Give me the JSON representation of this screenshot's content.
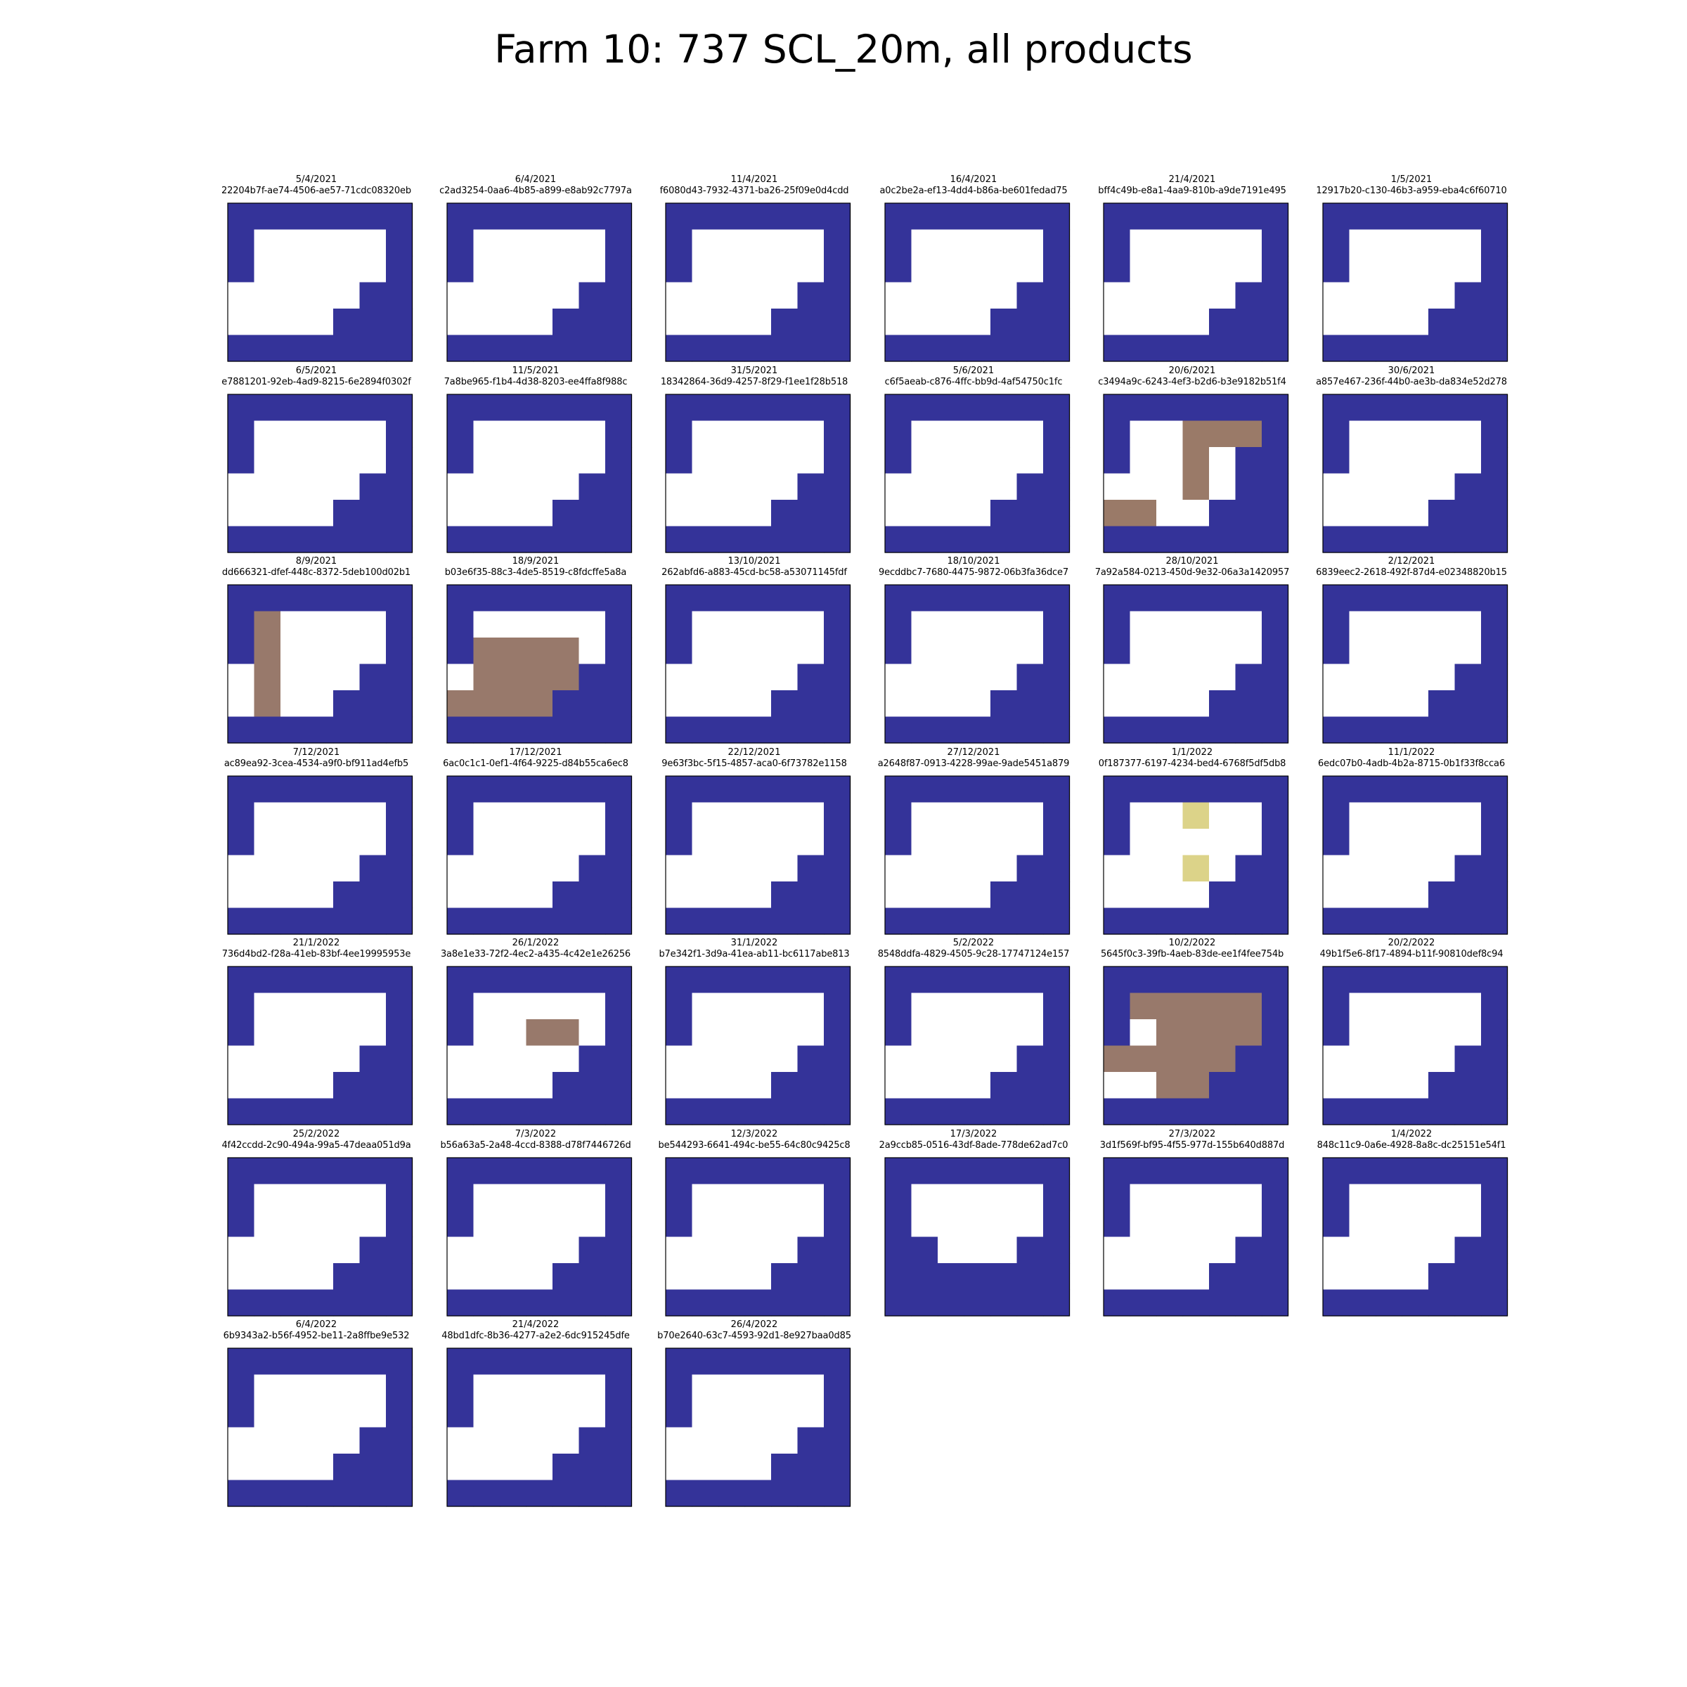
{
  "title": "Farm 10: 737 SCL_20m, all products",
  "chart_data": {
    "type": "heatmap",
    "title": "Farm 10: 737 SCL_20m, all products",
    "grid_columns": 6,
    "colors": {
      "N": "#343399",
      "W": "#ffffff",
      "B": "#98796b",
      "Y": "#dcd389",
      "D": "#9a7a68"
    },
    "panels": [
      {
        "date": "5/4/2021",
        "id": "22204b7f-ae74-4506-ae57-71cdc08320eb",
        "cells": [
          "NNNNNNN",
          "NWWWWWN",
          "NWWWWWN",
          "WWWWWNN",
          "WWWWNNN",
          "NNNNNNN"
        ]
      },
      {
        "date": "6/4/2021",
        "id": "c2ad3254-0aa6-4b85-a899-e8ab92c7797a",
        "cells": [
          "NNNNNNN",
          "NWWWWWN",
          "NWWWWWN",
          "WWWWWNN",
          "WWWWNNN",
          "NNNNNNN"
        ]
      },
      {
        "date": "11/4/2021",
        "id": "f6080d43-7932-4371-ba26-25f09e0d4cdd",
        "cells": [
          "NNNNNNN",
          "NWWWWWN",
          "NWWWWWN",
          "WWWWWNN",
          "WWWWNNN",
          "NNNNNNN"
        ]
      },
      {
        "date": "16/4/2021",
        "id": "a0c2be2a-ef13-4dd4-b86a-be601fedad75",
        "cells": [
          "NNNNNNN",
          "NWWWWWN",
          "NWWWWWN",
          "WWWWWNN",
          "WWWWNNN",
          "NNNNNNN"
        ]
      },
      {
        "date": "21/4/2021",
        "id": "bff4c49b-e8a1-4aa9-810b-a9de7191e495",
        "cells": [
          "NNNNNNN",
          "NWWWWWN",
          "NWWWWWN",
          "WWWWWNN",
          "WWWWNNN",
          "NNNNNNN"
        ]
      },
      {
        "date": "1/5/2021",
        "id": "12917b20-c130-46b3-a959-eba4c6f60710",
        "cells": [
          "NNNNNNN",
          "NWWWWWN",
          "NWWWWWN",
          "WWWWWNN",
          "WWWWNNN",
          "NNNNNNN"
        ]
      },
      {
        "date": "6/5/2021",
        "id": "e7881201-92eb-4ad9-8215-6e2894f0302f",
        "cells": [
          "NNNNNNN",
          "NWWWWWN",
          "NWWWWWN",
          "WWWWWNN",
          "WWWWNNN",
          "NNNNNNN"
        ]
      },
      {
        "date": "11/5/2021",
        "id": "7a8be965-f1b4-4d38-8203-ee4ffa8f988c",
        "cells": [
          "NNNNNNN",
          "NWWWWWN",
          "NWWWWWN",
          "WWWWWNN",
          "WWWWNNN",
          "NNNNNNN"
        ]
      },
      {
        "date": "31/5/2021",
        "id": "18342864-36d9-4257-8f29-f1ee1f28b518",
        "cells": [
          "NNNNNNN",
          "NWWWWWN",
          "NWWWWWN",
          "WWWWWNN",
          "WWWWNNN",
          "NNNNNNN"
        ]
      },
      {
        "date": "5/6/2021",
        "id": "c6f5aeab-c876-4ffc-bb9d-4af54750c1fc",
        "cells": [
          "NNNNNNN",
          "NWWWWWN",
          "NWWWWWN",
          "WWWWWNN",
          "WWWWNNN",
          "NNNNNNN"
        ]
      },
      {
        "date": "20/6/2021",
        "id": "c3494a9c-6243-4ef3-b2d6-b3e9182b51f4",
        "cells": [
          "NNNNNNN",
          "NWWDDDN",
          "NWWDWNN",
          "WWWDWNN",
          "DDWWNNN",
          "NNNNNNN"
        ]
      },
      {
        "date": "30/6/2021",
        "id": "a857e467-236f-44b0-ae3b-da834e52d278",
        "cells": [
          "NNNNNNN",
          "NWWWWWN",
          "NWWWWWN",
          "WWWWWNN",
          "WWWWNNN",
          "NNNNNNN"
        ]
      },
      {
        "date": "8/9/2021",
        "id": "dd666321-dfef-448c-8372-5deb100d02b1",
        "cells": [
          "NNNNNNN",
          "NBWWWWN",
          "NBWWWWN",
          "WBWWWNN",
          "WBWWNNN",
          "NNNNNNN"
        ]
      },
      {
        "date": "18/9/2021",
        "id": "b03e6f35-88c3-4de5-8519-c8fdcffe5a8a",
        "cells": [
          "NNNNNNN",
          "NWWWWWN",
          "NBBBBWN",
          "WBBBBNN",
          "BBBBNNN",
          "NNNNNNN"
        ]
      },
      {
        "date": "13/10/2021",
        "id": "262abfd6-a883-45cd-bc58-a53071145fdf",
        "cells": [
          "NNNNNNN",
          "NWWWWWN",
          "NWWWWWN",
          "WWWWWNN",
          "WWWWNNN",
          "NNNNNNN"
        ]
      },
      {
        "date": "18/10/2021",
        "id": "9ecddbc7-7680-4475-9872-06b3fa36dce7",
        "cells": [
          "NNNNNNN",
          "NWWWWWN",
          "NWWWWWN",
          "WWWWWNN",
          "WWWWNNN",
          "NNNNNNN"
        ]
      },
      {
        "date": "28/10/2021",
        "id": "7a92a584-0213-450d-9e32-06a3a1420957",
        "cells": [
          "NNNNNNN",
          "NWWWWWN",
          "NWWWWWN",
          "WWWWWNN",
          "WWWWNNN",
          "NNNNNNN"
        ]
      },
      {
        "date": "2/12/2021",
        "id": "6839eec2-2618-492f-87d4-e02348820b15",
        "cells": [
          "NNNNNNN",
          "NWWWWWN",
          "NWWWWWN",
          "WWWWWNN",
          "WWWWNNN",
          "NNNNNNN"
        ]
      },
      {
        "date": "7/12/2021",
        "id": "ac89ea92-3cea-4534-a9f0-bf911ad4efb5",
        "cells": [
          "NNNNNNN",
          "NWWWWWN",
          "NWWWWWN",
          "WWWWWNN",
          "WWWWNNN",
          "NNNNNNN"
        ]
      },
      {
        "date": "17/12/2021",
        "id": "6ac0c1c1-0ef1-4f64-9225-d84b55ca6ec8",
        "cells": [
          "NNNNNNN",
          "NWWWWWN",
          "NWWWWWN",
          "WWWWWNN",
          "WWWWNNN",
          "NNNNNNN"
        ]
      },
      {
        "date": "22/12/2021",
        "id": "9e63f3bc-5f15-4857-aca0-6f73782e1158",
        "cells": [
          "NNNNNNN",
          "NWWWWWN",
          "NWWWWWN",
          "WWWWWNN",
          "WWWWNNN",
          "NNNNNNN"
        ]
      },
      {
        "date": "27/12/2021",
        "id": "a2648f87-0913-4228-99ae-9ade5451a879",
        "cells": [
          "NNNNNNN",
          "NWWWWWN",
          "NWWWWWN",
          "WWWWWNN",
          "WWWWNNN",
          "NNNNNNN"
        ]
      },
      {
        "date": "1/1/2022",
        "id": "0f187377-6197-4234-bed4-6768f5df5db8",
        "cells": [
          "NNNNNNN",
          "NWWYWWN",
          "NWWWWWN",
          "WWWYWNN",
          "WWWWNNN",
          "NNNNNNN"
        ]
      },
      {
        "date": "11/1/2022",
        "id": "6edc07b0-4adb-4b2a-8715-0b1f33f8cca6",
        "cells": [
          "NNNNNNN",
          "NWWWWWN",
          "NWWWWWN",
          "WWWWWNN",
          "WWWWNNN",
          "NNNNNNN"
        ]
      },
      {
        "date": "21/1/2022",
        "id": "736d4bd2-f28a-41eb-83bf-4ee19995953e",
        "cells": [
          "NNNNNNN",
          "NWWWWWN",
          "NWWWWWN",
          "WWWWWNN",
          "WWWWNNN",
          "NNNNNNN"
        ]
      },
      {
        "date": "26/1/2022",
        "id": "3a8e1e33-72f2-4ec2-a435-4c42e1e26256",
        "cells": [
          "NNNNNNN",
          "NWWWWWN",
          "NWWBBWN",
          "WWWWWNN",
          "WWWWNNN",
          "NNNNNNN"
        ]
      },
      {
        "date": "31/1/2022",
        "id": "b7e342f1-3d9a-41ea-ab11-bc6117abe813",
        "cells": [
          "NNNNNNN",
          "NWWWWWN",
          "NWWWWWN",
          "WWWWWNN",
          "WWWWNNN",
          "NNNNNNN"
        ]
      },
      {
        "date": "5/2/2022",
        "id": "8548ddfa-4829-4505-9c28-17747124e157",
        "cells": [
          "NNNNNNN",
          "NWWWWWN",
          "NWWWWWN",
          "WWWWWNN",
          "WWWWNNN",
          "NNNNNNN"
        ]
      },
      {
        "date": "10/2/2022",
        "id": "5645f0c3-39fb-4aeb-83de-ee1f4fee754b",
        "cells": [
          "NNNNNNN",
          "NBBBBBN",
          "NWBBBBN",
          "BBBBBNN",
          "WWBBNNN",
          "NNNNNNN"
        ]
      },
      {
        "date": "20/2/2022",
        "id": "49b1f5e6-8f17-4894-b11f-90810def8c94",
        "cells": [
          "NNNNNNN",
          "NWWWWWN",
          "NWWWWWN",
          "WWWWWNN",
          "WWWWNNN",
          "NNNNNNN"
        ]
      },
      {
        "date": "25/2/2022",
        "id": "4f42ccdd-2c90-494a-99a5-47deaa051d9a",
        "cells": [
          "NNNNNNN",
          "NWWWWWN",
          "NWWWWWN",
          "WWWWWNN",
          "WWWWNNN",
          "NNNNNNN"
        ]
      },
      {
        "date": "7/3/2022",
        "id": "b56a63a5-2a48-4ccd-8388-d78f7446726d",
        "cells": [
          "NNNNNNN",
          "NWWWWWN",
          "NWWWWWN",
          "WWWWWNN",
          "WWWWNNN",
          "NNNNNNN"
        ]
      },
      {
        "date": "12/3/2022",
        "id": "be544293-6641-494c-be55-64c80c9425c8",
        "cells": [
          "NNNNNNN",
          "NWWWWWN",
          "NWWWWWN",
          "WWWWWNN",
          "WWWWNNN",
          "NNNNNNN"
        ]
      },
      {
        "date": "17/3/2022",
        "id": "2a9ccb85-0516-43df-8ade-778de62ad7c0",
        "cells": [
          "NNNNNNN",
          "NWWWWWN",
          "NWWWWWN",
          "NNWWWNN",
          "NNNNNNN",
          "NNNNNNN"
        ]
      },
      {
        "date": "27/3/2022",
        "id": "3d1f569f-bf95-4f55-977d-155b640d887d",
        "cells": [
          "NNNNNNN",
          "NWWWWWN",
          "NWWWWWN",
          "WWWWWNN",
          "WWWWNNN",
          "NNNNNNN"
        ]
      },
      {
        "date": "1/4/2022",
        "id": "848c11c9-0a6e-4928-8a8c-dc25151e54f1",
        "cells": [
          "NNNNNNN",
          "NWWWWWN",
          "NWWWWWN",
          "WWWWWNN",
          "WWWWNNN",
          "NNNNNNN"
        ]
      },
      {
        "date": "6/4/2022",
        "id": "6b9343a2-b56f-4952-be11-2a8ffbe9e532",
        "cells": [
          "NNNNNNN",
          "NWWWWWN",
          "NWWWWWN",
          "WWWWWNN",
          "WWWWNNN",
          "NNNNNNN"
        ]
      },
      {
        "date": "21/4/2022",
        "id": "48bd1dfc-8b36-4277-a2e2-6dc915245dfe",
        "cells": [
          "NNNNNNN",
          "NWWWWWN",
          "NWWWWWN",
          "WWWWWNN",
          "WWWWNNN",
          "NNNNNNN"
        ]
      },
      {
        "date": "26/4/2022",
        "id": "b70e2640-63c7-4593-92d1-8e927baa0d85",
        "cells": [
          "NNNNNNN",
          "NWWWWWN",
          "NWWWWWN",
          "WWWWWNN",
          "WWWWNNN",
          "NNNNNNN"
        ]
      }
    ]
  }
}
